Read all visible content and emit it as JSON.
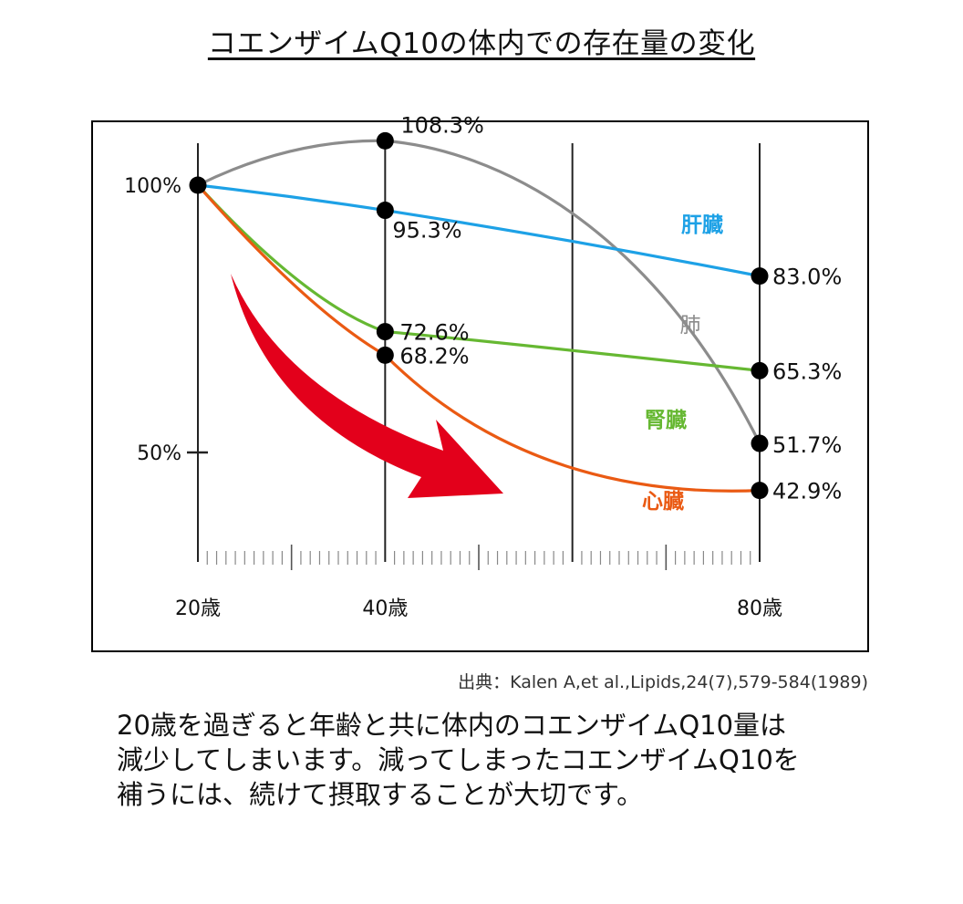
{
  "title": "コエンザイムQ10の体内での存在量の変化",
  "source": "出典：Kalen A,et al.,Lipids,24(7),579-584(1989)",
  "description_lines": [
    "20歳を過ぎると年齢と共に体内のコエンザイムQ10量は",
    "減少してしまいます。減ってしまったコエンザイムQ10を",
    "補うには、続けて摂取することが大切です。"
  ],
  "colors": {
    "liver": "#1da1e6",
    "lung": "#8c8c8c",
    "kidney": "#66b832",
    "heart": "#ea5a13",
    "arrow": "#e3001b"
  },
  "chart_data": {
    "type": "line",
    "title": "コエンザイムQ10の体内での存在量の変化",
    "xlabel": "",
    "ylabel": "",
    "x_ticks": [
      {
        "x": 20,
        "label": "20歳"
      },
      {
        "x": 40,
        "label": "40歳"
      },
      {
        "x": 80,
        "label": "80歳"
      }
    ],
    "y_ticks": [
      {
        "y": 100,
        "label": "100%"
      },
      {
        "y": 50,
        "label": "50%"
      }
    ],
    "xlim": [
      20,
      80
    ],
    "ylim": [
      32,
      117
    ],
    "grid": "vertical",
    "series": [
      {
        "name": "肝臓",
        "color_key": "liver",
        "points": [
          {
            "x": 20,
            "y": 100,
            "label": ""
          },
          {
            "x": 40,
            "y": 95.3,
            "label": "95.3%"
          },
          {
            "x": 80,
            "y": 83.0,
            "label": "83.0%"
          }
        ]
      },
      {
        "name": "肺",
        "color_key": "lung",
        "points": [
          {
            "x": 20,
            "y": 100,
            "label": ""
          },
          {
            "x": 40,
            "y": 108.3,
            "label": "108.3%"
          },
          {
            "x": 80,
            "y": 51.7,
            "label": "51.7%"
          }
        ]
      },
      {
        "name": "腎臓",
        "color_key": "kidney",
        "points": [
          {
            "x": 20,
            "y": 100,
            "label": ""
          },
          {
            "x": 40,
            "y": 72.6,
            "label": "72.6%"
          },
          {
            "x": 80,
            "y": 65.3,
            "label": "65.3%"
          }
        ]
      },
      {
        "name": "心臓",
        "color_key": "heart",
        "points": [
          {
            "x": 20,
            "y": 100,
            "label": ""
          },
          {
            "x": 40,
            "y": 68.2,
            "label": "68.2%"
          },
          {
            "x": 80,
            "y": 42.9,
            "label": "42.9%"
          }
        ]
      }
    ]
  }
}
